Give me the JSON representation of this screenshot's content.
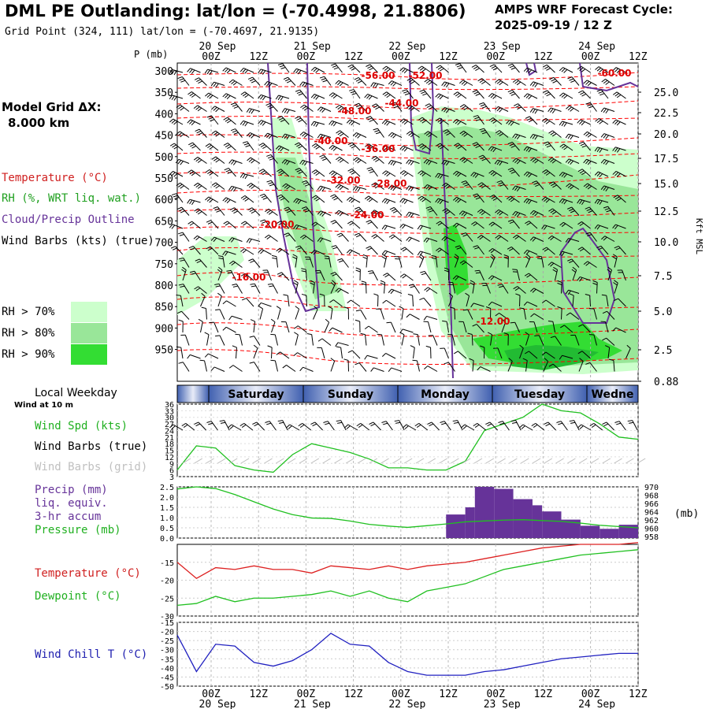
{
  "header": {
    "title": "DML PE Outlanding:  lat/lon = (-70.4998, 21.8806)",
    "grid_point": "Grid Point (324, 111) lat/lon = (-70.4697, 21.9135)",
    "cycle_line1": "AMPS WRF Forecast Cycle:",
    "cycle_line2": "2025-09-19 / 12  Z",
    "model_grid_line1": "Model Grid ΔX:",
    "model_grid_line2": "8.000 km"
  },
  "legend": {
    "temperature": "Temperature (°C)",
    "rh": "RH (%, WRT liq. wat.)",
    "cloud": "Cloud/Precip Outline",
    "wind": "Wind Barbs (kts) (true)",
    "rh70": "RH > 70%",
    "rh80": "RH > 80%",
    "rh90": "RH > 90%",
    "colors": {
      "rh70": "#ccffcc",
      "rh80": "#99e699",
      "rh90": "#33dd33",
      "temp": "#ff0000",
      "cloud": "#663399"
    }
  },
  "time_axis": {
    "top_labels": [
      "00Z",
      "12Z",
      "00Z",
      "12Z",
      "00Z",
      "12Z",
      "00Z",
      "12Z",
      "00Z",
      "12Z"
    ],
    "top_dates": [
      "20 Sep",
      "21 Sep",
      "22 Sep",
      "23 Sep",
      "24 Sep"
    ],
    "bottom_labels": [
      "00Z",
      "12Z",
      "00Z",
      "12Z",
      "00Z",
      "12Z",
      "00Z",
      "12Z",
      "00Z",
      "12Z"
    ],
    "bottom_dates": [
      "20 Sep",
      "21 Sep",
      "22 Sep",
      "23 Sep",
      "24 Sep"
    ]
  },
  "weekday": {
    "label": "Local Weekday",
    "wind_note": "Wind at 10 m",
    "days": [
      "Saturday",
      "Sunday",
      "Monday",
      "Tuesday",
      "Wedne"
    ]
  },
  "chart_data": [
    {
      "type": "heatmap",
      "title": "Vertical cross-section",
      "ylabel": "P (mb)",
      "y2label": "Kft MSL",
      "pressure_ticks": [
        300,
        350,
        400,
        450,
        500,
        550,
        600,
        650,
        700,
        750,
        800,
        850,
        900,
        950
      ],
      "height_ticks": [
        "25.0",
        "22.5",
        "20.0",
        "17.5",
        "15.0",
        "12.5",
        "10.0",
        "7.5",
        "5.0",
        "2.5",
        "0.88"
      ],
      "axis_title_p": "P (mb)",
      "axis_title_k": "Kft MSL",
      "temperature_labels": [
        "-56.00",
        "-52.00",
        "-60.00",
        "-48.00",
        "-44.00",
        "-40.00",
        "-36.00",
        "-32.00",
        "-28.00",
        "-24.00",
        "-20.00",
        "-16.00",
        "-12.00"
      ]
    },
    {
      "type": "line",
      "title": "Wind speed at 10 m",
      "labels": [
        "Wind Spd (kts)",
        "Wind Barbs (true)",
        "Wind Barbs (grid)"
      ],
      "yticks": [
        3,
        6,
        9,
        12,
        15,
        18,
        21,
        24,
        27,
        30,
        33,
        36
      ],
      "ylim": [
        3,
        36
      ],
      "x": [
        0,
        6,
        12,
        18,
        24,
        30,
        36,
        42,
        48,
        54,
        60,
        66,
        72,
        78,
        84,
        90,
        96,
        102,
        108,
        114,
        120,
        126,
        132,
        138,
        144
      ],
      "values": [
        6,
        17,
        16,
        8,
        6,
        5,
        13,
        18,
        16,
        14,
        11,
        7,
        7,
        6,
        6,
        10,
        24,
        27,
        30,
        36,
        33,
        32,
        27,
        21,
        20
      ]
    },
    {
      "type": "bar",
      "title": "Precip and pressure",
      "labels": [
        "Precip (mm)",
        "liq. equiv.",
        "3-hr accum",
        "Pressure (mb)"
      ],
      "y2unit": "(mb)",
      "yticks": [
        "0.0",
        "0.5",
        "1.0",
        "1.5",
        "2.0",
        "2.5"
      ],
      "y2ticks": [
        "970",
        "968",
        "966",
        "964",
        "962",
        "960",
        "958"
      ],
      "ylim": [
        0,
        2.5
      ],
      "precip_bars": [
        {
          "x": [
            84,
            90
          ],
          "v": 1.15
        },
        {
          "x": [
            90,
            93
          ],
          "v": 1.5
        },
        {
          "x": [
            93,
            99
          ],
          "v": 2.5
        },
        {
          "x": [
            99,
            105
          ],
          "v": 2.4
        },
        {
          "x": [
            105,
            111
          ],
          "v": 1.9
        },
        {
          "x": [
            111,
            114
          ],
          "v": 1.6
        },
        {
          "x": [
            114,
            120
          ],
          "v": 1.3
        },
        {
          "x": [
            120,
            126
          ],
          "v": 0.9
        },
        {
          "x": [
            126,
            132
          ],
          "v": 0.6
        },
        {
          "x": [
            132,
            138
          ],
          "v": 0.45
        },
        {
          "x": [
            138,
            144
          ],
          "v": 0.65
        }
      ],
      "pressure_x": [
        0,
        6,
        12,
        18,
        24,
        30,
        36,
        42,
        48,
        54,
        60,
        66,
        72,
        78,
        84,
        90,
        96,
        102,
        108,
        114,
        120,
        126,
        132,
        138,
        144
      ],
      "pressure_values": [
        969.5,
        970,
        969.6,
        968.2,
        966.5,
        964.8,
        963.5,
        962.7,
        962.6,
        962.0,
        961.2,
        960.8,
        960.5,
        960.9,
        961.3,
        961.8,
        962.0,
        962.2,
        962.3,
        962.1,
        961.9,
        961.5,
        961.0,
        960.7,
        960.4
      ]
    },
    {
      "type": "line",
      "title": "Temperature and dewpoint",
      "labels": [
        "Temperature (°C)",
        "Dewpoint (°C)"
      ],
      "yticks": [
        -15,
        -20,
        -25,
        -30
      ],
      "ylim": [
        -30,
        -10
      ],
      "x": [
        0,
        6,
        12,
        18,
        24,
        30,
        36,
        42,
        48,
        54,
        60,
        66,
        72,
        78,
        84,
        90,
        96,
        102,
        108,
        114,
        120,
        126,
        132,
        138,
        144
      ],
      "temperature": [
        -15,
        -19.5,
        -16.5,
        -17,
        -16,
        -17,
        -17,
        -18,
        -16,
        -16.5,
        -17,
        -16,
        -17,
        -16,
        -15.5,
        -15,
        -14,
        -13,
        -12,
        -11,
        -10.5,
        -10,
        -10,
        -10,
        -9.5
      ],
      "dewpoint": [
        -27,
        -26.5,
        -24.5,
        -26,
        -25,
        -25,
        -24.5,
        -24,
        -23,
        -24.5,
        -23,
        -25,
        -26,
        -23,
        -22,
        -21,
        -19,
        -17,
        -16,
        -15,
        -14,
        -13,
        -12.5,
        -12,
        -11.5
      ]
    },
    {
      "type": "line",
      "title": "Wind chill",
      "labels": [
        "Wind Chill T (°C)"
      ],
      "yticks": [
        -15,
        -20,
        -25,
        -30,
        -35,
        -40,
        -45,
        -50
      ],
      "ylim": [
        -50,
        -15
      ],
      "x": [
        0,
        6,
        12,
        18,
        24,
        30,
        36,
        42,
        48,
        54,
        60,
        66,
        72,
        78,
        84,
        90,
        96,
        102,
        108,
        114,
        120,
        126,
        132,
        138,
        144
      ],
      "values": [
        -22,
        -42,
        -27,
        -28,
        -37,
        -39,
        -36,
        -30,
        -21,
        -27,
        -28,
        -37,
        -42,
        -44,
        -44,
        -44,
        -42,
        -41,
        -39,
        -37,
        -35,
        -34,
        -33,
        -32,
        -32
      ]
    }
  ]
}
